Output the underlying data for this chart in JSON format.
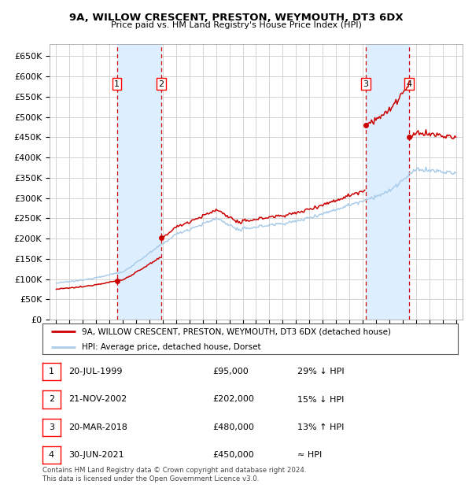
{
  "title": "9A, WILLOW CRESCENT, PRESTON, WEYMOUTH, DT3 6DX",
  "subtitle": "Price paid vs. HM Land Registry's House Price Index (HPI)",
  "legend_line1": "9A, WILLOW CRESCENT, PRESTON, WEYMOUTH, DT3 6DX (detached house)",
  "legend_line2": "HPI: Average price, detached house, Dorset",
  "footer1": "Contains HM Land Registry data © Crown copyright and database right 2024.",
  "footer2": "This data is licensed under the Open Government Licence v3.0.",
  "transactions": [
    {
      "num": 1,
      "date": "20-JUL-1999",
      "price": 95000,
      "relation": "29% ↓ HPI",
      "year": 1999.55
    },
    {
      "num": 2,
      "date": "21-NOV-2002",
      "price": 202000,
      "relation": "15% ↓ HPI",
      "year": 2002.89
    },
    {
      "num": 3,
      "date": "20-MAR-2018",
      "price": 480000,
      "relation": "13% ↑ HPI",
      "year": 2018.22
    },
    {
      "num": 4,
      "date": "30-JUN-2021",
      "price": 450000,
      "relation": "≈ HPI",
      "year": 2021.5
    }
  ],
  "ylim": [
    0,
    680000
  ],
  "xlim_start": 1994.5,
  "xlim_end": 2025.5,
  "hpi_color": "#aacce8",
  "price_color": "#cc0000",
  "grid_color": "#cccccc",
  "dashed_color": "#cc0000",
  "shade_color": "#ddeeff",
  "background_color": "#ffffff"
}
